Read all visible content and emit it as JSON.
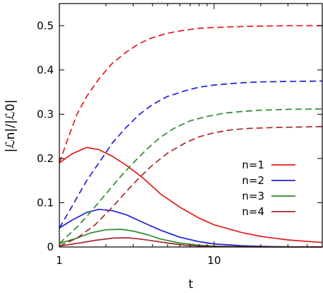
{
  "chart_data": {
    "type": "line",
    "xlabel": "t",
    "ylabel": "|ℒn|/|ℒ0|",
    "x_scale": "log",
    "xlim": [
      1,
      50
    ],
    "ylim": [
      0,
      0.55
    ],
    "x_ticks": [
      {
        "value": 1,
        "label": "1"
      },
      {
        "value": 10,
        "label": "10"
      }
    ],
    "y_ticks": [
      {
        "value": 0,
        "label": "0"
      },
      {
        "value": 0.1,
        "label": "0.1"
      },
      {
        "value": 0.2,
        "label": "0.2"
      },
      {
        "value": 0.3,
        "label": "0.3"
      },
      {
        "value": 0.4,
        "label": "0.4"
      },
      {
        "value": 0.5,
        "label": "0.5"
      }
    ],
    "legend_position": "right",
    "series": [
      {
        "name": "n=1",
        "color": "#e41a1c",
        "style": "solid",
        "x": [
          1,
          1.2,
          1.5,
          1.8,
          2.2,
          2.7,
          3.5,
          4.5,
          6,
          8,
          10,
          15,
          20,
          30,
          50
        ],
        "y": [
          0.19,
          0.21,
          0.225,
          0.22,
          0.205,
          0.185,
          0.155,
          0.12,
          0.09,
          0.065,
          0.05,
          0.033,
          0.024,
          0.016,
          0.01
        ]
      },
      {
        "name": "n=2",
        "color": "#1f22d8",
        "style": "solid",
        "x": [
          1,
          1.2,
          1.5,
          1.8,
          2.2,
          2.7,
          3.5,
          4.5,
          6,
          8,
          10,
          15,
          20,
          30,
          50
        ],
        "y": [
          0.043,
          0.06,
          0.078,
          0.085,
          0.082,
          0.073,
          0.055,
          0.038,
          0.022,
          0.012,
          0.007,
          0.003,
          0.0015,
          0.0005,
          0
        ]
      },
      {
        "name": "n=3",
        "color": "#2e8b2e",
        "style": "solid",
        "x": [
          1,
          1.3,
          1.6,
          2,
          2.5,
          3,
          3.7,
          4.5,
          6,
          8,
          10,
          15,
          20,
          50
        ],
        "y": [
          0.008,
          0.02,
          0.032,
          0.039,
          0.04,
          0.036,
          0.028,
          0.018,
          0.009,
          0.004,
          0.002,
          0.0008,
          0.0003,
          0
        ]
      },
      {
        "name": "n=4",
        "color": "#a52a2a",
        "style": "solid",
        "x": [
          1,
          1.3,
          1.7,
          2.2,
          2.7,
          3.3,
          4,
          5,
          6.5,
          8,
          10,
          15,
          20,
          50
        ],
        "y": [
          0.002,
          0.008,
          0.015,
          0.02,
          0.021,
          0.018,
          0.014,
          0.009,
          0.004,
          0.002,
          0.001,
          0.0003,
          0.0001,
          0
        ]
      },
      {
        "name": "",
        "color": "#e41a1c",
        "style": "dashed",
        "x": [
          1,
          1.15,
          1.3,
          1.5,
          1.8,
          2.2,
          2.7,
          3.3,
          4,
          5,
          6.5,
          8,
          10,
          15,
          20,
          30,
          50
        ],
        "y": [
          0.19,
          0.25,
          0.3,
          0.34,
          0.38,
          0.415,
          0.44,
          0.46,
          0.473,
          0.483,
          0.49,
          0.494,
          0.496,
          0.498,
          0.499,
          0.5,
          0.5
        ]
      },
      {
        "name": "",
        "color": "#1f22d8",
        "style": "dashed",
        "x": [
          1,
          1.2,
          1.5,
          1.8,
          2.2,
          2.7,
          3.3,
          4,
          5,
          6.5,
          8,
          10,
          15,
          20,
          30,
          50
        ],
        "y": [
          0.043,
          0.09,
          0.15,
          0.19,
          0.235,
          0.27,
          0.3,
          0.322,
          0.34,
          0.353,
          0.361,
          0.366,
          0.371,
          0.373,
          0.374,
          0.375
        ]
      },
      {
        "name": "",
        "color": "#2e8b2e",
        "style": "dashed",
        "x": [
          1,
          1.3,
          1.6,
          2,
          2.5,
          3,
          3.7,
          4.5,
          5.5,
          7,
          9,
          12,
          15,
          20,
          30,
          50
        ],
        "y": [
          0.008,
          0.045,
          0.08,
          0.12,
          0.16,
          0.19,
          0.222,
          0.248,
          0.268,
          0.285,
          0.295,
          0.303,
          0.306,
          0.309,
          0.311,
          0.312
        ]
      },
      {
        "name": "",
        "color": "#a52a2a",
        "style": "dashed",
        "x": [
          1,
          1.3,
          1.7,
          2.2,
          2.7,
          3.3,
          4,
          5,
          6.5,
          8,
          10,
          13,
          17,
          25,
          35,
          50
        ],
        "y": [
          0.002,
          0.02,
          0.05,
          0.09,
          0.125,
          0.157,
          0.185,
          0.212,
          0.235,
          0.249,
          0.258,
          0.265,
          0.268,
          0.27,
          0.271,
          0.272
        ]
      }
    ]
  }
}
